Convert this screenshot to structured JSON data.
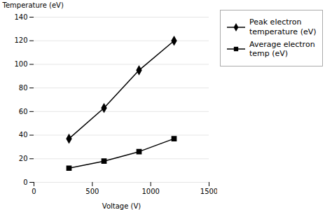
{
  "chart_data": {
    "type": "line",
    "x": [
      300,
      600,
      900,
      1200
    ],
    "series": [
      {
        "name": "Peak electron\ntemperature (eV)",
        "color": "#000000",
        "marker": "diamond",
        "values": [
          37,
          63,
          95,
          120
        ]
      },
      {
        "name": "Average electron\ntemp (eV)",
        "color": "#000000",
        "marker": "square",
        "values": [
          12,
          18,
          26,
          37
        ]
      }
    ],
    "xlabel": "Voltage (V)",
    "ylabel": "Temperature (eV)",
    "xlim": [
      0,
      1500
    ],
    "ylim": [
      0,
      140
    ],
    "xticks": [
      0,
      500,
      1000,
      1500
    ],
    "yticks": [
      0,
      20,
      40,
      60,
      80,
      100,
      120,
      140
    ],
    "grid": true,
    "legend": "right"
  }
}
